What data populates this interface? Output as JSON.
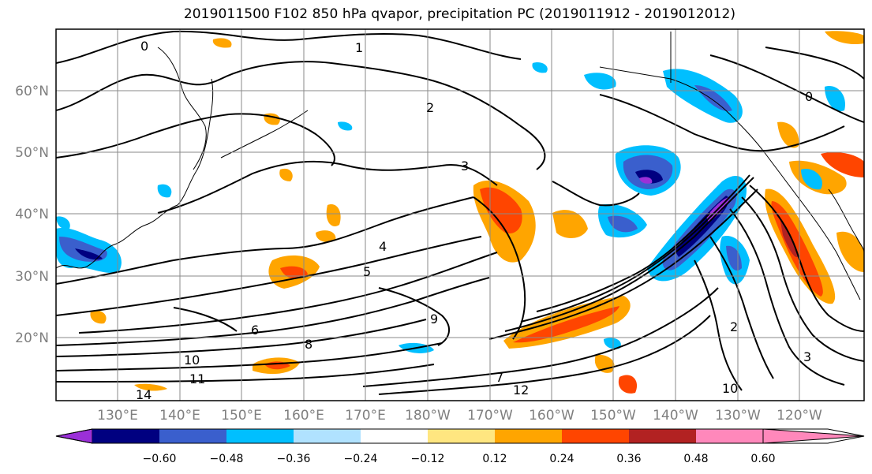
{
  "title": "2019011500 F102 850 hPa qvapor, precipitation PC (2019011912 - 2019012012)",
  "lat_labels": [
    "60°N",
    "50°N",
    "40°N",
    "30°N",
    "20°N"
  ],
  "lon_labels": [
    "130°E",
    "140°E",
    "150°E",
    "160°E",
    "170°E",
    "180°W",
    "170°W",
    "160°W",
    "150°W",
    "140°W",
    "130°W",
    "120°W"
  ],
  "colorbar": {
    "ticks": [
      "−0.60",
      "−0.48",
      "−0.36",
      "−0.24",
      "−0.12",
      "0.12",
      "0.24",
      "0.36",
      "0.48",
      "0.60"
    ],
    "colors": [
      "#9b30d8",
      "#000080",
      "#3a5fcd",
      "#00bfff",
      "#b0e2ff",
      "#ffffff",
      "#ffe680",
      "#ffa500",
      "#ff4500",
      "#b22222",
      "#ff88bb"
    ]
  },
  "contour_labels": [
    "0",
    "1",
    "2",
    "3",
    "4",
    "5",
    "6",
    "7",
    "8",
    "9",
    "10",
    "11",
    "12",
    "14"
  ]
}
